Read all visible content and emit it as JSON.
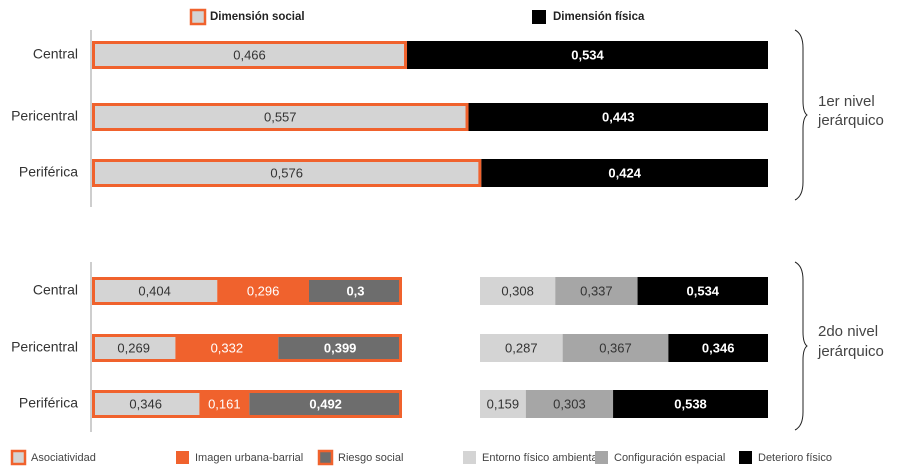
{
  "chart_data": [
    {
      "type": "bar",
      "orientation": "horizontal",
      "stacked": true,
      "normalized": true,
      "title": "",
      "categories": [
        "Central",
        "Pericentral",
        "Periférica"
      ],
      "series": [
        {
          "name": "Dimensión social",
          "values": [
            0.466,
            0.557,
            0.576
          ],
          "labels": [
            "0,466",
            "0,557",
            "0,576"
          ],
          "color": "#d4d4d4",
          "border": "#f0622d"
        },
        {
          "name": "Dimensión física",
          "values": [
            0.534,
            0.443,
            0.424
          ],
          "labels": [
            "0,534",
            "0,443",
            "0,424"
          ],
          "color": "#000000"
        }
      ],
      "group_label": "1er nivel jerárquico",
      "legend_position": "top",
      "xlim": [
        0,
        1
      ]
    },
    {
      "type": "bar",
      "orientation": "horizontal",
      "stacked": true,
      "normalized": true,
      "title": "",
      "categories": [
        "Central",
        "Pericentral",
        "Periférica"
      ],
      "series": [
        {
          "name": "Asociatividad",
          "values": [
            0.404,
            0.269,
            0.346
          ],
          "labels": [
            "0,404",
            "0,269",
            "0,346"
          ],
          "color": "#d4d4d4"
        },
        {
          "name": "Imagen urbana-barrial",
          "values": [
            0.296,
            0.332,
            0.161
          ],
          "labels": [
            "0,296",
            "0,332",
            "0,161"
          ],
          "color": "#f0622d"
        },
        {
          "name": "Riesgo social",
          "values": [
            0.3,
            0.399,
            0.492
          ],
          "labels": [
            "0,3",
            "0,399",
            "0,492"
          ],
          "color": "#6d6d6d"
        }
      ],
      "dimension": "Dimensión social",
      "group_label": "2do nivel jerárquico",
      "legend_position": "bottom",
      "xlim": [
        0,
        1
      ]
    },
    {
      "type": "bar",
      "orientation": "horizontal",
      "stacked": true,
      "normalized": true,
      "title": "",
      "categories": [
        "Central",
        "Pericentral",
        "Periférica"
      ],
      "series": [
        {
          "name": "Entorno físico ambiental",
          "values": [
            0.308,
            0.287,
            0.159
          ],
          "labels": [
            "0,308",
            "0,287",
            "0,159"
          ],
          "color": "#d4d4d4"
        },
        {
          "name": "Configuración espacial",
          "values": [
            0.337,
            0.367,
            0.303
          ],
          "labels": [
            "0,337",
            "0,367",
            "0,303"
          ],
          "color": "#a6a6a6"
        },
        {
          "name": "Deterioro físico",
          "values": [
            0.534,
            0.346,
            0.538
          ],
          "labels": [
            "0,534",
            "0,346",
            "0,538"
          ],
          "color": "#000000"
        }
      ],
      "dimension": "Dimensión física",
      "group_label": "2do nivel jerárquico",
      "legend_position": "bottom",
      "xlim": [
        0,
        1
      ]
    }
  ],
  "legend_top": [
    {
      "label": "Dimensión social",
      "color": "#d4d4d4",
      "border": "#f0622d"
    },
    {
      "label": "Dimensión física",
      "color": "#000000"
    }
  ],
  "legend_bottom": [
    {
      "label": "Asociatividad",
      "color": "#d4d4d4",
      "border": "#f0622d"
    },
    {
      "label": "Imagen urbana-barrial",
      "color": "#f0622d"
    },
    {
      "label": "Riesgo social",
      "color": "#6d6d6d",
      "border": "#f0622d"
    },
    {
      "label": "Entorno físico ambiental",
      "color": "#d4d4d4"
    },
    {
      "label": "Configuración espacial",
      "color": "#a6a6a6"
    },
    {
      "label": "Deterioro físico",
      "color": "#000000"
    }
  ],
  "group_labels": [
    [
      "1er nivel",
      "jerárquico"
    ],
    [
      "2do nivel",
      "jerárquico"
    ]
  ],
  "colors": {
    "accent": "#f0622d",
    "light_gray": "#d4d4d4",
    "mid_gray": "#a6a6a6",
    "dark_gray": "#6d6d6d",
    "black": "#000000"
  }
}
